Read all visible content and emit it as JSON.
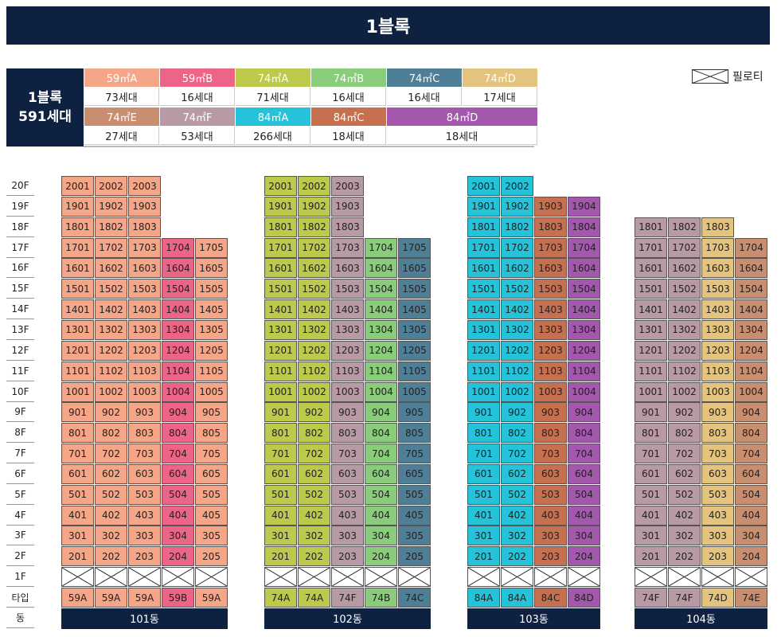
{
  "title": "1블록",
  "legend": {
    "block_name": "1블록",
    "block_total": "591세대",
    "row1": [
      {
        "type": "59㎡A",
        "count": "73세대",
        "color": "#f5a688"
      },
      {
        "type": "59㎡B",
        "count": "16세대",
        "color": "#ee6486"
      },
      {
        "type": "74㎡A",
        "count": "71세대",
        "color": "#bcc94a"
      },
      {
        "type": "74㎡B",
        "count": "16세대",
        "color": "#89cc7a"
      },
      {
        "type": "74㎡C",
        "count": "16세대",
        "color": "#4f7f96"
      },
      {
        "type": "74㎡D",
        "count": "17세대",
        "color": "#e3c37e"
      }
    ],
    "row2": [
      {
        "type": "74㎡E",
        "count": "27세대",
        "color": "#c98e70"
      },
      {
        "type": "74㎡F",
        "count": "53세대",
        "color": "#b89aa6"
      },
      {
        "type": "84㎡A",
        "count": "266세대",
        "color": "#25c3d9"
      },
      {
        "type": "84㎡C",
        "count": "18세대",
        "color": "#c7704f"
      },
      {
        "type": "84㎡D",
        "count": "18세대",
        "color": "#a358ad"
      }
    ],
    "piloti_label": "필로티"
  },
  "floors": [
    "20F",
    "19F",
    "18F",
    "17F",
    "16F",
    "15F",
    "14F",
    "13F",
    "12F",
    "11F",
    "10F",
    "9F",
    "8F",
    "7F",
    "6F",
    "5F",
    "4F",
    "3F",
    "2F",
    "1F"
  ],
  "type_row_label": "타입",
  "dong_row_label": "동",
  "colors": {
    "59A": "#f5a688",
    "59B": "#ee6486",
    "74A": "#bcc94a",
    "74B": "#89cc7a",
    "74C": "#4f7f96",
    "74D": "#e3c37e",
    "74E": "#c98e70",
    "74F": "#b89aa6",
    "84A": "#25c3d9",
    "84C": "#c7704f",
    "84D": "#a358ad",
    "navy": "#0e2140"
  },
  "buildings": [
    {
      "name": "101동",
      "columns": [
        {
          "type": "59A",
          "top": 20
        },
        {
          "type": "59A",
          "top": 20
        },
        {
          "type": "59A",
          "top": 20
        },
        {
          "type": "59B",
          "top": 17
        },
        {
          "type": "59A",
          "top": 17
        }
      ]
    },
    {
      "name": "102동",
      "columns": [
        {
          "type": "74A",
          "top": 20
        },
        {
          "type": "74A",
          "top": 20
        },
        {
          "type": "74F",
          "top": 20
        },
        {
          "type": "74B",
          "top": 17
        },
        {
          "type": "74C",
          "top": 17
        }
      ]
    },
    {
      "name": "103동",
      "columns": [
        {
          "type": "84A",
          "top": 20
        },
        {
          "type": "84A",
          "top": 20
        },
        {
          "type": "84C",
          "top": 19
        },
        {
          "type": "84D",
          "top": 19
        }
      ]
    },
    {
      "name": "104동",
      "columns": [
        {
          "type": "74F",
          "top": 18
        },
        {
          "type": "74F",
          "top": 18
        },
        {
          "type": "74D",
          "top": 18
        },
        {
          "type": "74E",
          "top": 17
        }
      ]
    }
  ]
}
